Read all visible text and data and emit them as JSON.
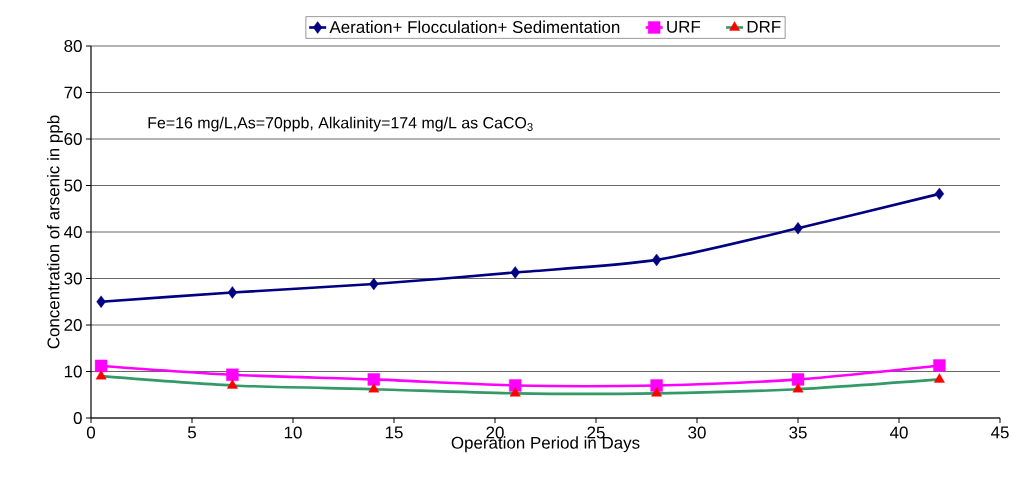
{
  "chart_data": {
    "type": "line",
    "xlabel": "Operation Period in Days",
    "ylabel": "Concentration of arsenic in ppb",
    "annotations": [
      "Fe=16 mg/L,As=70ppb, Alkalinity=174 mg/L as CaCO$_{3}$"
    ],
    "x": [
      0.5,
      7,
      14,
      21,
      28,
      35,
      42
    ],
    "series": [
      {
        "name": "Aeration+ Flocculation+ Sedimentation",
        "color": "#000080",
        "marker": "diamond",
        "values": [
          25,
          27,
          28.8,
          31.3,
          34,
          40.8,
          48.2
        ]
      },
      {
        "name": "URF",
        "color": "#ff00ff",
        "marker": "square",
        "values": [
          11.2,
          9.3,
          8.3,
          7,
          7,
          8.3,
          11.3
        ]
      },
      {
        "name": "DRF",
        "color": "#339966",
        "colors": [
          "#ff0000",
          "#ff0000",
          "#ff0000",
          "#ff0000",
          "#ff0000",
          "#ff0000",
          "#ff0000"
        ],
        "marker": "triangle",
        "values": [
          9,
          7,
          6.2,
          5.3,
          5.3,
          6.2,
          8.3
        ]
      }
    ],
    "xlim": [
      0,
      45
    ],
    "xticks": [
      0,
      5,
      10,
      15,
      20,
      25,
      30,
      35,
      40,
      45
    ],
    "ylim": [
      0,
      80
    ],
    "yticks": [
      0,
      10,
      20,
      30,
      40,
      50,
      60,
      70,
      80
    ],
    "grid": "y",
    "legend": "top",
    "line_style": "solid"
  }
}
